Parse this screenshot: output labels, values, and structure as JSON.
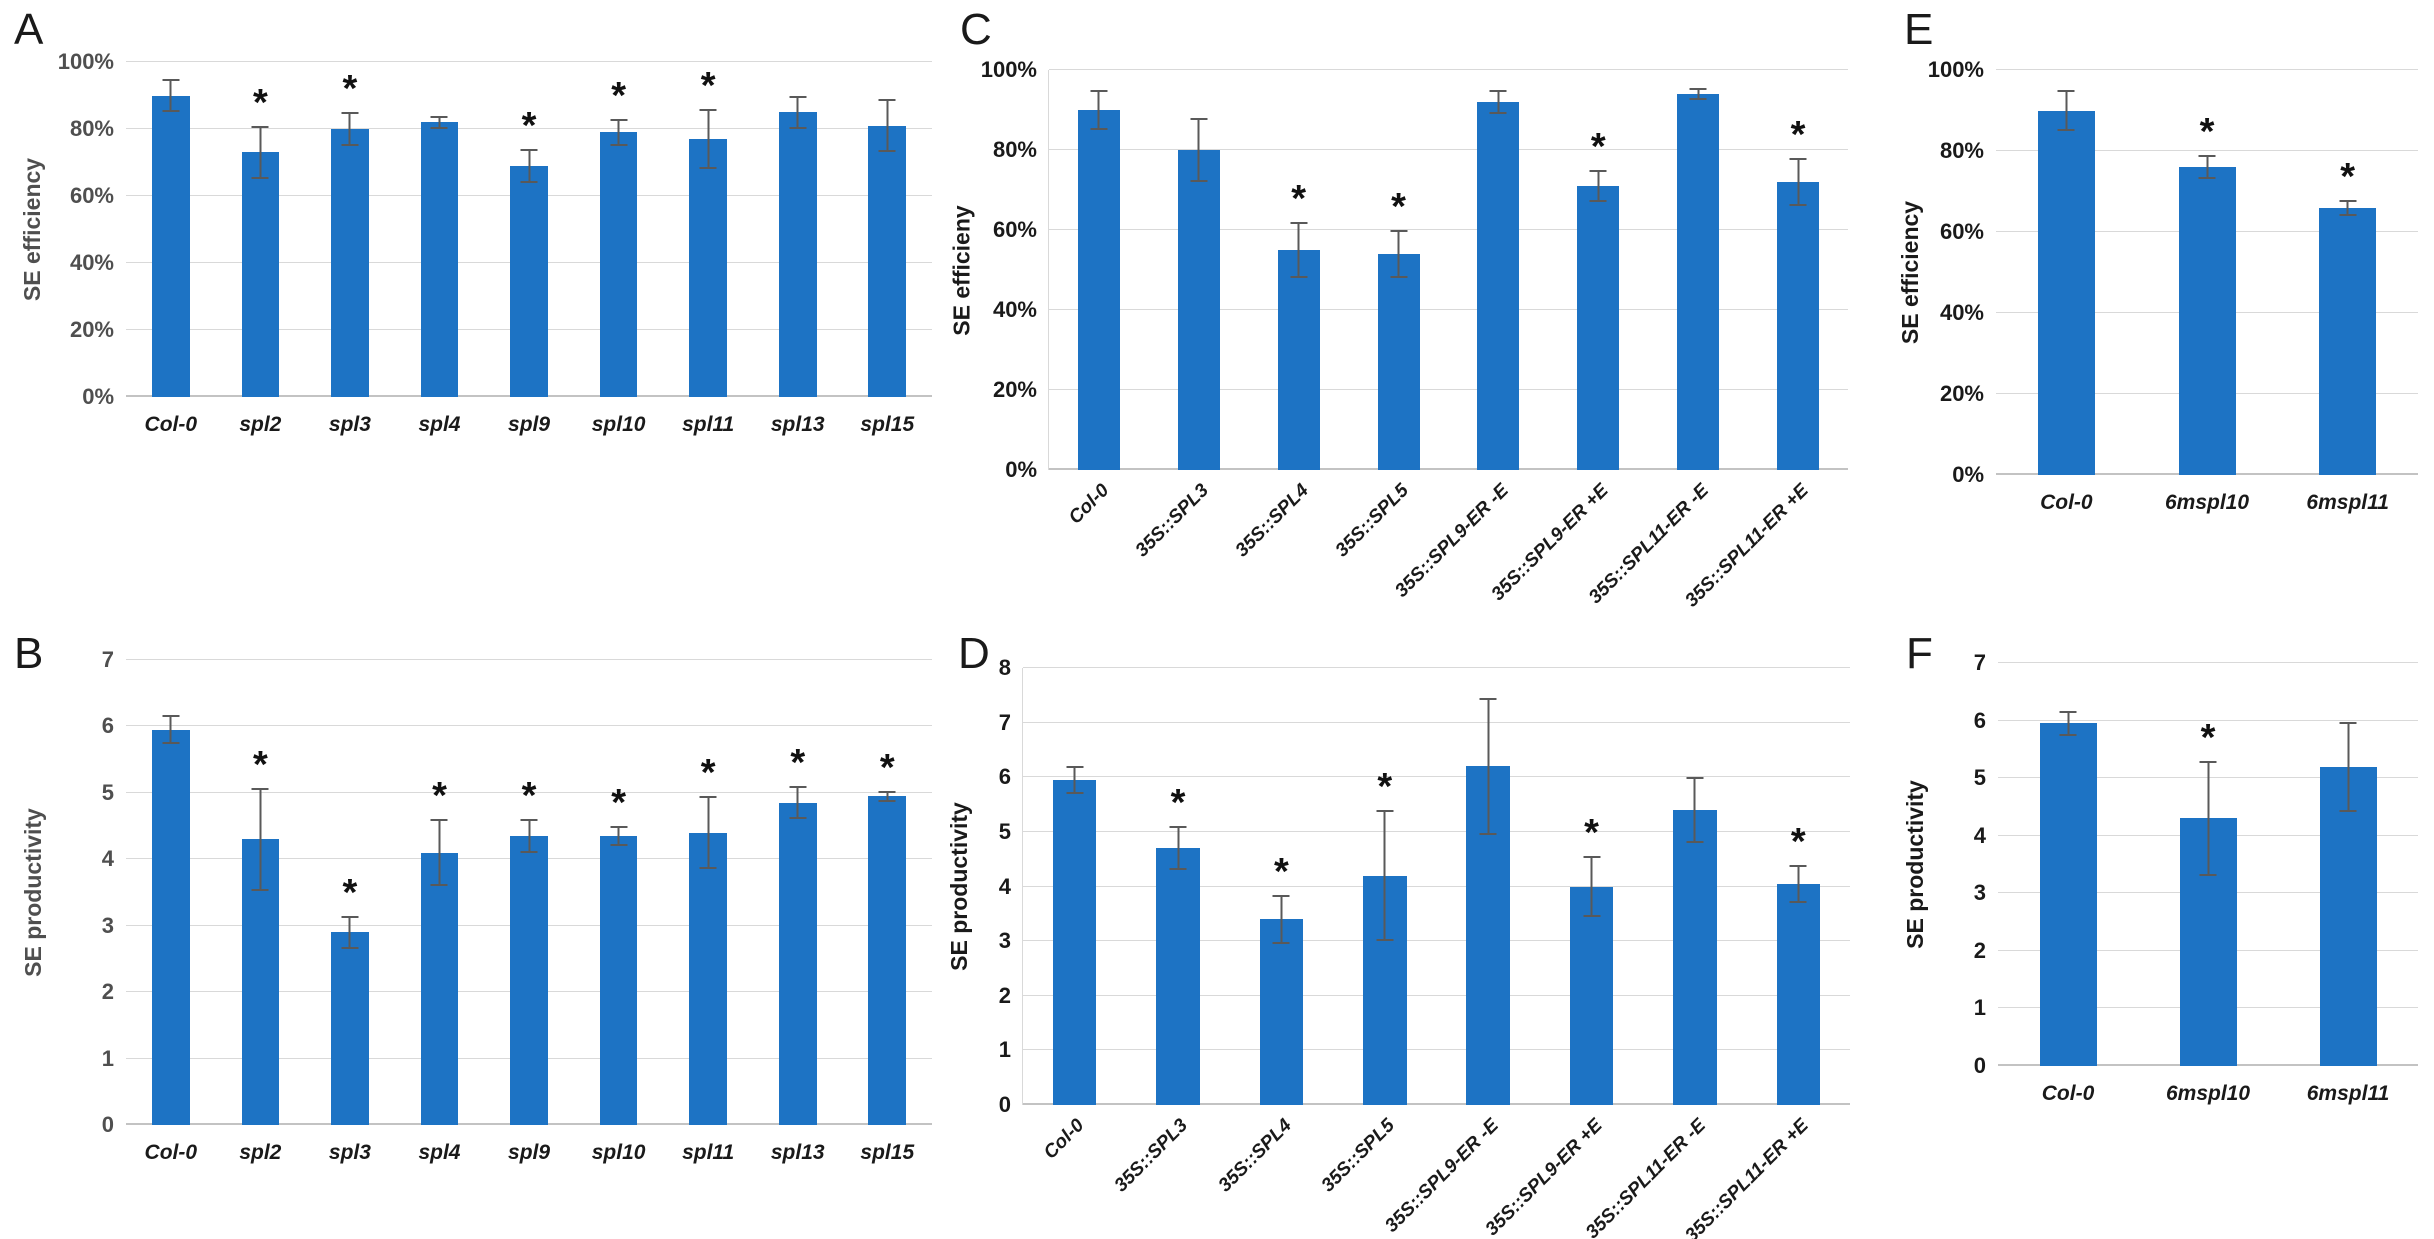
{
  "figure": {
    "bar_color": "#1d73c4",
    "error_color": "#595959",
    "grid_color": "#d9d9d9",
    "axis_color": "#c3c3c3",
    "significance_marker": "*"
  },
  "chart_data": [
    {
      "panel_label": "A",
      "type": "bar",
      "ylabel": "SE efficiency",
      "xlabel": "",
      "ylim": [
        0,
        100
      ],
      "ytick_step": 20,
      "percent": true,
      "rotated_xlabels": false,
      "grid": true,
      "categories": [
        "Col-0",
        "spl2",
        "spl3",
        "spl4",
        "spl9",
        "spl10",
        "spl11",
        "spl13",
        "spl15"
      ],
      "values": [
        90,
        73,
        80,
        82,
        69,
        79,
        77,
        85,
        81
      ],
      "errors": [
        5,
        8,
        5,
        2,
        5,
        4,
        9,
        5,
        8
      ],
      "significance": [
        "",
        "*",
        "*",
        "",
        "*",
        "*",
        "*",
        "",
        ""
      ]
    },
    {
      "panel_label": "B",
      "type": "bar",
      "ylabel": "SE productivity",
      "xlabel": "",
      "ylim": [
        0,
        7
      ],
      "ytick_step": 1,
      "percent": false,
      "rotated_xlabels": false,
      "grid": true,
      "categories": [
        "Col-0",
        "spl2",
        "spl3",
        "spl4",
        "spl9",
        "spl10",
        "spl11",
        "spl13",
        "spl15"
      ],
      "values": [
        5.95,
        4.3,
        2.9,
        4.1,
        4.35,
        4.35,
        4.4,
        4.85,
        4.95
      ],
      "errors": [
        0.22,
        0.78,
        0.25,
        0.5,
        0.25,
        0.15,
        0.55,
        0.25,
        0.08
      ],
      "significance": [
        "",
        "*",
        "*",
        "*",
        "*",
        "*",
        "*",
        "*",
        "*"
      ]
    },
    {
      "panel_label": "C",
      "type": "bar",
      "ylabel": "SE efficieny",
      "xlabel": "",
      "ylim": [
        0,
        100
      ],
      "ytick_step": 20,
      "percent": true,
      "rotated_xlabels": true,
      "grid": true,
      "categories": [
        "Col-0",
        "35S::SPL3",
        "35S::SPL4",
        "35S::SPL5",
        "35S::SPL9-ER -E",
        "35S::SPL9-ER +E",
        "35S::SPL11-ER -E",
        "35S::SPL11-ER +E"
      ],
      "values": [
        90,
        80,
        55,
        54,
        92,
        71,
        94,
        72
      ],
      "errors": [
        5,
        8,
        7,
        6,
        3,
        4,
        1.5,
        6
      ],
      "significance": [
        "",
        "",
        "*",
        "*",
        "",
        "*",
        "",
        "*"
      ]
    },
    {
      "panel_label": "D",
      "type": "bar",
      "ylabel": "SE productivity",
      "xlabel": "",
      "ylim": [
        0,
        8
      ],
      "ytick_step": 1,
      "percent": false,
      "rotated_xlabels": true,
      "grid": true,
      "categories": [
        "Col-0",
        "35S::SPL3",
        "35S::SPL4",
        "35S::SPL5",
        "35S::SPL9-ER -E",
        "35S::SPL9-ER +E",
        "35S::SPL11-ER -E",
        "35S::SPL11-ER +E"
      ],
      "values": [
        5.95,
        4.7,
        3.4,
        4.2,
        6.2,
        4.0,
        5.4,
        4.05
      ],
      "errors": [
        0.25,
        0.4,
        0.45,
        1.2,
        1.25,
        0.55,
        0.6,
        0.35
      ],
      "significance": [
        "",
        "*",
        "*",
        "*",
        "",
        "*",
        "",
        "*"
      ]
    },
    {
      "panel_label": "E",
      "type": "bar",
      "ylabel": "SE efficiency",
      "xlabel": "",
      "ylim": [
        0,
        100
      ],
      "ytick_step": 20,
      "percent": true,
      "rotated_xlabels": false,
      "grid": true,
      "categories": [
        "Col-0",
        "6mspl10",
        "6mspl11"
      ],
      "values": [
        90,
        76,
        66
      ],
      "errors": [
        5,
        3,
        2
      ],
      "significance": [
        "",
        "*",
        "*"
      ]
    },
    {
      "panel_label": "F",
      "type": "bar",
      "ylabel": "SE productivity",
      "xlabel": "",
      "ylim": [
        0,
        7
      ],
      "ytick_step": 1,
      "percent": false,
      "rotated_xlabels": false,
      "grid": true,
      "categories": [
        "Col-0",
        "6mspl10",
        "6mspl11"
      ],
      "values": [
        5.95,
        4.3,
        5.2
      ],
      "errors": [
        0.22,
        1.0,
        0.78
      ],
      "significance": [
        "",
        "*",
        ""
      ]
    }
  ]
}
